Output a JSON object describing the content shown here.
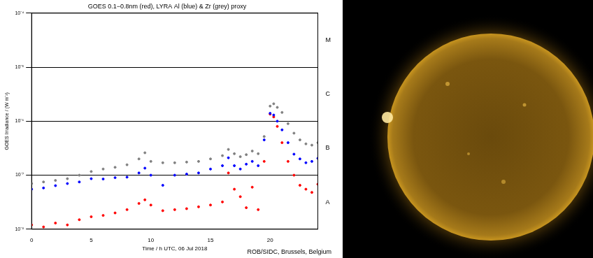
{
  "chart_data": {
    "type": "scatter",
    "title": "GOES 0.1−0.8nm (red), LYRA Al (blue) & Zr (grey) proxy",
    "x_label": "Time / h UTC, 06 Jul 2018",
    "y_label": "GOES Irradiance / (W m⁻²)",
    "credit": "ROB/SIDC, Brussels, Belgium",
    "log": "y",
    "grid": "y",
    "marker": "dot",
    "xlim": [
      0,
      24
    ],
    "xticks": [
      0,
      5,
      10,
      15,
      20
    ],
    "ylim": [
      1e-08,
      0.0001
    ],
    "yticks": [
      {
        "value": 1e-08,
        "label": "10⁻⁸"
      },
      {
        "value": 1e-07,
        "label": "10⁻⁷"
      },
      {
        "value": 1e-06,
        "label": "10⁻⁶"
      },
      {
        "value": 1e-05,
        "label": "10⁻⁵"
      },
      {
        "value": 0.0001,
        "label": "10⁻⁴"
      }
    ],
    "y2lim": [
      1e-08,
      0.0001
    ],
    "y2ticks": [
      {
        "value": 3.16e-08,
        "label": "A"
      },
      {
        "value": 3.16e-07,
        "label": "B"
      },
      {
        "value": 3.16e-06,
        "label": "C"
      },
      {
        "value": 3.16e-05,
        "label": "M"
      }
    ],
    "x": [
      0,
      1,
      2,
      3,
      4,
      5,
      6,
      7,
      8,
      9,
      9.5,
      10,
      11,
      12,
      13,
      14,
      15,
      16,
      16.5,
      17,
      17.5,
      18,
      18.5,
      19,
      19.5,
      20,
      20.3,
      20.6,
      21,
      21.5,
      22,
      22.5,
      23,
      23.5,
      24
    ],
    "series": [
      {
        "name": "Zr",
        "color": "#808080",
        "values": [
          7e-08,
          7.5e-08,
          8e-08,
          8.6e-08,
          1e-07,
          1.17e-07,
          1.3e-07,
          1.4e-07,
          1.56e-07,
          2e-07,
          2.6e-07,
          1.8e-07,
          1.7e-07,
          1.7e-07,
          1.75e-07,
          1.8e-07,
          2e-07,
          2.3e-07,
          3e-07,
          2.5e-07,
          2.2e-07,
          2.4e-07,
          2.8e-07,
          2.5e-07,
          5.2e-07,
          1.9e-06,
          2.1e-06,
          1.8e-06,
          1.45e-06,
          9e-07,
          6e-07,
          4.5e-07,
          3.8e-07,
          3.6e-07,
          4e-07
        ]
      },
      {
        "name": "LYRA Al",
        "color": "#0000ff",
        "values": [
          5.5e-08,
          5.8e-08,
          6.4e-08,
          7e-08,
          7.5e-08,
          8.6e-08,
          8.5e-08,
          9e-08,
          9.2e-08,
          1.1e-07,
          1.35e-07,
          1e-07,
          6.5e-08,
          1e-07,
          1.05e-07,
          1.1e-07,
          1.3e-07,
          1.5e-07,
          2.1e-07,
          1.5e-07,
          1.3e-07,
          1.6e-07,
          1.8e-07,
          1.5e-07,
          4.5e-07,
          1.4e-06,
          1.3e-06,
          1e-06,
          6.9e-07,
          4e-07,
          2.45e-07,
          2e-07,
          1.7e-07,
          1.8e-07,
          2.05e-07
        ]
      },
      {
        "name": "GOES 0.1−0.8nm",
        "color": "#ff0000",
        "values": [
          1.2e-08,
          1.1e-08,
          1.3e-08,
          1.2e-08,
          1.5e-08,
          1.7e-08,
          1.8e-08,
          2e-08,
          2.3e-08,
          3e-08,
          3.5e-08,
          2.8e-08,
          2.2e-08,
          2.3e-08,
          2.4e-08,
          2.6e-08,
          2.8e-08,
          3.2e-08,
          1.1e-07,
          5.5e-08,
          4e-08,
          2.5e-08,
          6e-08,
          2.3e-08,
          1.8e-07,
          1.35e-06,
          1.2e-06,
          8e-07,
          4e-07,
          1.8e-07,
          1e-07,
          6.5e-08,
          5.5e-08,
          4.8e-08,
          6.8e-08
        ]
      }
    ]
  }
}
